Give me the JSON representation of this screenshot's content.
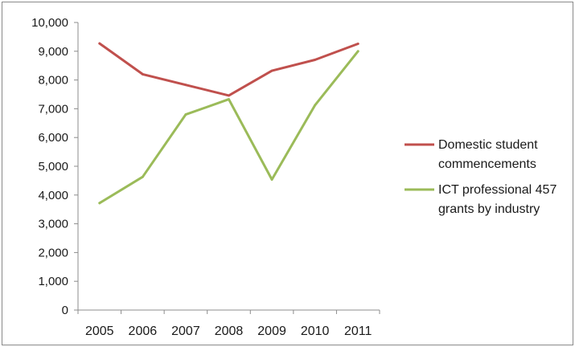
{
  "chart_data": {
    "type": "line",
    "categories": [
      "2005",
      "2006",
      "2007",
      "2008",
      "2009",
      "2010",
      "2011"
    ],
    "y_ticks": [
      "0",
      "1,000",
      "2,000",
      "3,000",
      "4,000",
      "5,000",
      "6,000",
      "7,000",
      "8,000",
      "9,000",
      "10,000"
    ],
    "ylim": [
      0,
      10000
    ],
    "grid": false,
    "legend_position": "right",
    "title": "",
    "xlabel": "",
    "ylabel": "",
    "series": [
      {
        "name": "Domestic student commencements",
        "legend_lines": [
          "Domestic student",
          "commencements"
        ],
        "color": "#c0504d",
        "values": [
          9270,
          8200,
          7830,
          7460,
          8320,
          8700,
          9260
        ]
      },
      {
        "name": "ICT professional 457 grants by industry",
        "legend_lines": [
          "ICT professional 457",
          "grants by industry"
        ],
        "color": "#9bbb59",
        "values": [
          3720,
          4630,
          6800,
          7330,
          4540,
          7120,
          9000
        ]
      }
    ]
  }
}
